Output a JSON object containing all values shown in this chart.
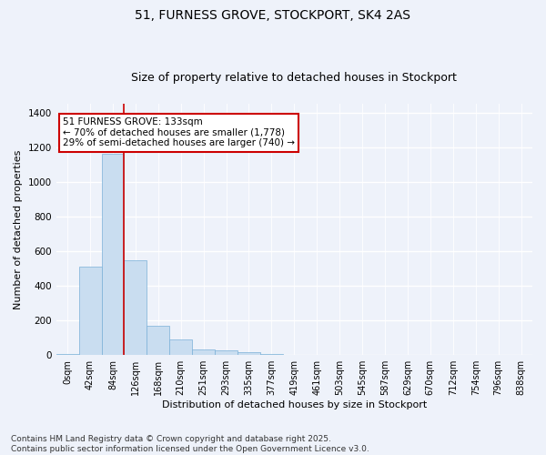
{
  "title_line1": "51, FURNESS GROVE, STOCKPORT, SK4 2AS",
  "title_line2": "Size of property relative to detached houses in Stockport",
  "xlabel": "Distribution of detached houses by size in Stockport",
  "ylabel": "Number of detached properties",
  "bar_color": "#c9ddf0",
  "bar_edge_color": "#7ab0d8",
  "background_color": "#eef2fa",
  "grid_color": "#ffffff",
  "annotation_text": "51 FURNESS GROVE: 133sqm\n← 70% of detached houses are smaller (1,778)\n29% of semi-detached houses are larger (740) →",
  "annotation_box_color": "#ffffff",
  "annotation_box_edge": "#cc0000",
  "vline_x": 3,
  "vline_color": "#cc0000",
  "categories": [
    "0sqm",
    "42sqm",
    "84sqm",
    "126sqm",
    "168sqm",
    "210sqm",
    "251sqm",
    "293sqm",
    "335sqm",
    "377sqm",
    "419sqm",
    "461sqm",
    "503sqm",
    "545sqm",
    "587sqm",
    "629sqm",
    "670sqm",
    "712sqm",
    "754sqm",
    "796sqm",
    "838sqm"
  ],
  "values": [
    8,
    510,
    1160,
    545,
    170,
    90,
    32,
    25,
    18,
    8,
    2,
    0,
    0,
    0,
    0,
    0,
    0,
    0,
    0,
    0,
    0
  ],
  "ylim": [
    0,
    1450
  ],
  "yticks": [
    0,
    200,
    400,
    600,
    800,
    1000,
    1200,
    1400
  ],
  "footnote": "Contains HM Land Registry data © Crown copyright and database right 2025.\nContains public sector information licensed under the Open Government Licence v3.0.",
  "title_fontsize": 10,
  "subtitle_fontsize": 9,
  "axis_label_fontsize": 8,
  "tick_fontsize": 7.5,
  "footnote_fontsize": 6.5
}
